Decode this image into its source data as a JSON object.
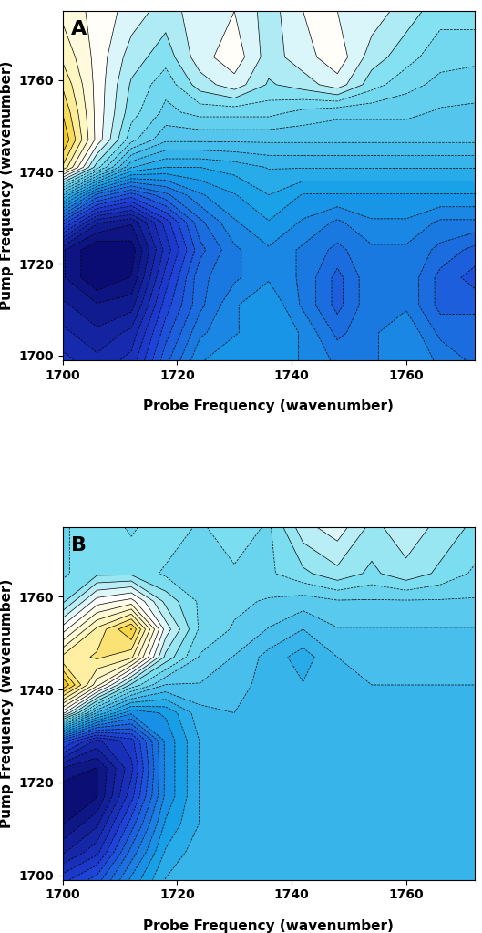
{
  "chart_data": [
    {
      "type": "contour",
      "annotations": [
        "A"
      ],
      "x_label": "Probe Frequency (wavenumber)",
      "y_label": "Pump Frequency (wavenumber)",
      "xlim": [
        1700,
        1772
      ],
      "ylim": [
        1699,
        1775
      ],
      "xticks": [
        1700,
        1720,
        1740,
        1760
      ],
      "yticks": [
        1700,
        1720,
        1740,
        1760
      ],
      "x": [
        1700,
        1706,
        1712,
        1718,
        1724,
        1730,
        1736,
        1742,
        1748,
        1754,
        1760,
        1766,
        1772
      ],
      "y": [
        1699,
        1705,
        1711,
        1717,
        1723,
        1729,
        1735,
        1741,
        1747,
        1753,
        1759,
        1765,
        1775
      ],
      "z": [
        [
          -0.75,
          -0.8,
          -0.75,
          -0.55,
          -0.4,
          -0.35,
          -0.35,
          -0.4,
          -0.45,
          -0.45,
          -0.4,
          -0.45,
          -0.5
        ],
        [
          -0.8,
          -0.85,
          -0.8,
          -0.6,
          -0.45,
          -0.4,
          -0.35,
          -0.4,
          -0.5,
          -0.45,
          -0.4,
          -0.5,
          -0.5
        ],
        [
          -0.85,
          -0.9,
          -0.88,
          -0.65,
          -0.5,
          -0.4,
          -0.35,
          -0.45,
          -0.55,
          -0.45,
          -0.45,
          -0.55,
          -0.55
        ],
        [
          -0.9,
          -1.0,
          -0.95,
          -0.7,
          -0.5,
          -0.45,
          -0.4,
          -0.45,
          -0.55,
          -0.45,
          -0.45,
          -0.55,
          -0.6
        ],
        [
          -0.9,
          -1.0,
          -0.98,
          -0.75,
          -0.55,
          -0.45,
          -0.4,
          -0.45,
          -0.5,
          -0.45,
          -0.45,
          -0.5,
          -0.55
        ],
        [
          -0.6,
          -0.85,
          -0.9,
          -0.7,
          -0.5,
          -0.4,
          -0.35,
          -0.4,
          -0.45,
          -0.4,
          -0.4,
          -0.45,
          -0.45
        ],
        [
          -0.2,
          -0.5,
          -0.6,
          -0.5,
          -0.4,
          -0.35,
          -0.3,
          -0.35,
          -0.35,
          -0.35,
          -0.35,
          -0.35,
          -0.35
        ],
        [
          0.3,
          0.0,
          -0.25,
          -0.3,
          -0.3,
          -0.28,
          -0.25,
          -0.25,
          -0.25,
          -0.25,
          -0.25,
          -0.25,
          -0.25
        ],
        [
          0.4,
          0.15,
          -0.05,
          -0.15,
          -0.15,
          -0.15,
          -0.15,
          -0.15,
          -0.15,
          -0.15,
          -0.15,
          -0.15,
          -0.15
        ],
        [
          0.35,
          0.15,
          0.0,
          -0.08,
          -0.05,
          -0.05,
          -0.05,
          -0.08,
          -0.1,
          -0.1,
          -0.1,
          -0.12,
          -0.12
        ],
        [
          0.3,
          0.15,
          0.02,
          -0.05,
          0.05,
          0.1,
          0.02,
          0.05,
          0.1,
          0.0,
          -0.05,
          -0.08,
          -0.1
        ],
        [
          0.25,
          0.15,
          0.05,
          0.0,
          0.1,
          0.15,
          0.05,
          0.1,
          0.15,
          0.05,
          0.0,
          -0.05,
          -0.05
        ],
        [
          0.2,
          0.15,
          0.1,
          0.05,
          0.1,
          0.12,
          0.05,
          0.12,
          0.12,
          0.1,
          0.05,
          0.0,
          0.0
        ]
      ]
    },
    {
      "type": "contour",
      "annotations": [
        "B"
      ],
      "x_label": "Probe Frequency (wavenumber)",
      "y_label": "Pump Frequency (wavenumber)",
      "xlim": [
        1700,
        1772
      ],
      "ylim": [
        1699,
        1775
      ],
      "xticks": [
        1700,
        1720,
        1740,
        1760
      ],
      "yticks": [
        1700,
        1720,
        1740,
        1760
      ],
      "x": [
        1700,
        1706,
        1712,
        1718,
        1724,
        1730,
        1736,
        1742,
        1748,
        1754,
        1760,
        1766,
        1772
      ],
      "y": [
        1699,
        1705,
        1711,
        1717,
        1723,
        1729,
        1735,
        1741,
        1747,
        1753,
        1759,
        1765,
        1775
      ],
      "z": [
        [
          -0.7,
          -0.6,
          -0.4,
          -0.25,
          -0.2,
          -0.2,
          -0.2,
          -0.2,
          -0.2,
          -0.2,
          -0.2,
          -0.2,
          -0.2
        ],
        [
          -0.85,
          -0.75,
          -0.5,
          -0.3,
          -0.22,
          -0.2,
          -0.2,
          -0.2,
          -0.2,
          -0.2,
          -0.2,
          -0.2,
          -0.2
        ],
        [
          -0.95,
          -0.85,
          -0.6,
          -0.35,
          -0.25,
          -0.2,
          -0.2,
          -0.2,
          -0.22,
          -0.2,
          -0.2,
          -0.2,
          -0.2
        ],
        [
          -1.0,
          -0.95,
          -0.7,
          -0.4,
          -0.25,
          -0.22,
          -0.2,
          -0.2,
          -0.2,
          -0.2,
          -0.2,
          -0.2,
          -0.2
        ],
        [
          -0.9,
          -0.95,
          -0.75,
          -0.4,
          -0.25,
          -0.22,
          -0.22,
          -0.2,
          -0.2,
          -0.2,
          -0.2,
          -0.2,
          -0.2
        ],
        [
          -0.6,
          -0.8,
          -0.7,
          -0.4,
          -0.25,
          -0.2,
          -0.2,
          -0.2,
          -0.2,
          -0.2,
          -0.2,
          -0.2,
          -0.2
        ],
        [
          0.2,
          -0.2,
          -0.4,
          -0.35,
          -0.22,
          -0.2,
          -0.2,
          -0.22,
          -0.2,
          -0.2,
          -0.2,
          -0.2,
          -0.2
        ],
        [
          0.6,
          0.3,
          0.0,
          -0.15,
          -0.15,
          -0.18,
          -0.22,
          -0.25,
          -0.2,
          -0.2,
          -0.2,
          -0.2,
          -0.2
        ],
        [
          0.4,
          0.45,
          0.4,
          0.05,
          -0.1,
          -0.15,
          -0.22,
          -0.28,
          -0.2,
          -0.18,
          -0.18,
          -0.18,
          -0.18
        ],
        [
          0.2,
          0.4,
          0.55,
          0.15,
          -0.05,
          -0.1,
          -0.15,
          -0.2,
          -0.15,
          -0.15,
          -0.15,
          -0.15,
          -0.15
        ],
        [
          0.0,
          0.2,
          0.25,
          0.05,
          -0.05,
          -0.08,
          -0.1,
          -0.12,
          -0.1,
          -0.1,
          -0.1,
          -0.1,
          -0.1
        ],
        [
          -0.05,
          0.0,
          0.0,
          -0.05,
          -0.05,
          -0.05,
          -0.05,
          0.0,
          0.05,
          0.0,
          0.05,
          0.0,
          -0.05
        ],
        [
          -0.05,
          0.0,
          -0.05,
          0.0,
          -0.05,
          0.0,
          -0.05,
          0.1,
          0.15,
          0.05,
          0.1,
          0.05,
          0.0
        ]
      ]
    }
  ]
}
